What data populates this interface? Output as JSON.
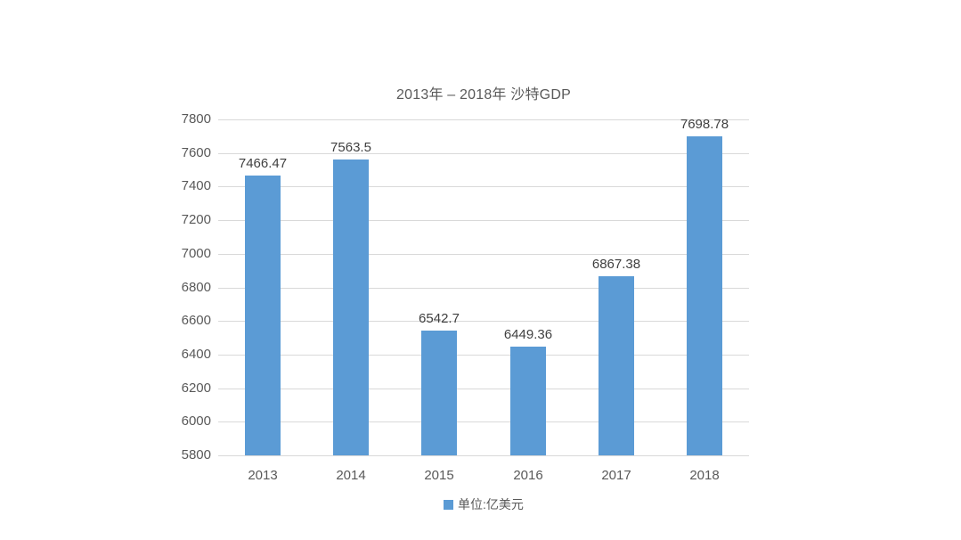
{
  "chart_data": {
    "type": "bar",
    "title": "2013年 – 2018年 沙特GDP",
    "categories": [
      "2013",
      "2014",
      "2015",
      "2016",
      "2017",
      "2018"
    ],
    "values": [
      7466.47,
      7563.5,
      6542.7,
      6449.36,
      6867.38,
      7698.78
    ],
    "value_labels": [
      "7466.47",
      "7563.5",
      "6542.7",
      "6449.36",
      "6867.38",
      "7698.78"
    ],
    "legend_label": "单位:亿美元",
    "ylim": [
      5800,
      7800
    ],
    "ytick_step": 200,
    "ytick_labels": [
      "5800",
      "6000",
      "6200",
      "6400",
      "6600",
      "6800",
      "7000",
      "7200",
      "7400",
      "7600",
      "7800"
    ],
    "grid": true,
    "legend_position": "bottom",
    "bar_color": "#5B9BD5",
    "gridline_color": "#D9D9D9",
    "axis_text_color": "#595959",
    "value_label_color": "#404040",
    "background": "#FFFFFF"
  }
}
